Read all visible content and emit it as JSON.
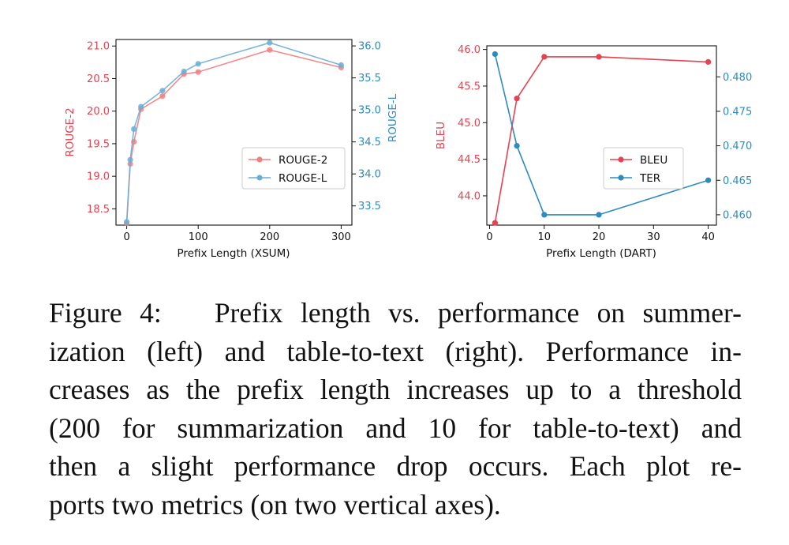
{
  "colors": {
    "red": "#e8414f",
    "blue": "#2e8bc0",
    "ink": "#111111"
  },
  "chart_data": [
    {
      "type": "line",
      "xlabel": "Prefix Length (XSUM)",
      "xlim": [
        -15,
        315
      ],
      "xticks": [
        0,
        100,
        200,
        300
      ],
      "y_left": {
        "label": "ROUGE-2",
        "lim": [
          18.25,
          21.1
        ],
        "ticks": [
          "18.5",
          "19.0",
          "19.5",
          "20.0",
          "20.5",
          "21.0"
        ],
        "color": "#e8414f"
      },
      "y_right": {
        "label": "ROUGE-L",
        "lim": [
          33.2,
          36.1
        ],
        "ticks": [
          "33.5",
          "34.0",
          "34.5",
          "35.0",
          "35.5",
          "36.0"
        ],
        "color": "#2e8bc0"
      },
      "legend_position": "center-right",
      "series": [
        {
          "name": "ROUGE-2",
          "axis": "left",
          "color": "#f08080",
          "x": [
            0,
            5,
            10,
            20,
            50,
            80,
            100,
            200,
            300
          ],
          "y": [
            18.28,
            19.19,
            19.53,
            20.03,
            20.23,
            20.57,
            20.6,
            20.94,
            20.67
          ]
        },
        {
          "name": "ROUGE-L",
          "axis": "right",
          "color": "#6baed6",
          "x": [
            0,
            5,
            10,
            20,
            50,
            80,
            100,
            200,
            300
          ],
          "y": [
            33.25,
            34.22,
            34.7,
            35.05,
            35.3,
            35.6,
            35.72,
            36.05,
            35.7
          ]
        }
      ]
    },
    {
      "type": "line",
      "xlabel": "Prefix Length (DART)",
      "xlim": [
        -0.5,
        41.5
      ],
      "xticks": [
        0,
        10,
        20,
        30,
        40
      ],
      "y_left": {
        "label": "BLEU",
        "lim": [
          43.6,
          46.05
        ],
        "ticks": [
          "44.0",
          "44.5",
          "45.0",
          "45.5",
          "46.0"
        ],
        "color": "#e8414f"
      },
      "y_right": {
        "label": "",
        "lim": [
          0.4585,
          0.4845
        ],
        "ticks": [
          "0.460",
          "0.465",
          "0.470",
          "0.475",
          "0.480"
        ],
        "color": "#2e8bc0"
      },
      "legend_position": "center-right",
      "series": [
        {
          "name": "BLEU",
          "axis": "left",
          "color": "#e8414f",
          "x": [
            1,
            5,
            10,
            20,
            40
          ],
          "y": [
            43.63,
            45.33,
            45.9,
            45.9,
            45.83
          ]
        },
        {
          "name": "TER",
          "axis": "right",
          "color": "#2e8bc0",
          "x": [
            1,
            5,
            10,
            20,
            40
          ],
          "y": [
            0.4833,
            0.47,
            0.46,
            0.46,
            0.465
          ]
        }
      ]
    }
  ],
  "caption": {
    "lines": [
      "Figure 4:   Prefix length vs. performance on summer-",
      "ization (left) and table-to-text (right).  Performance in-",
      "creases as the prefix length increases up to a threshold",
      "(200 for summarization and 10 for table-to-text) and",
      "then a slight performance drop occurs.  Each plot re-",
      "ports two metrics (on two vertical axes)."
    ]
  }
}
